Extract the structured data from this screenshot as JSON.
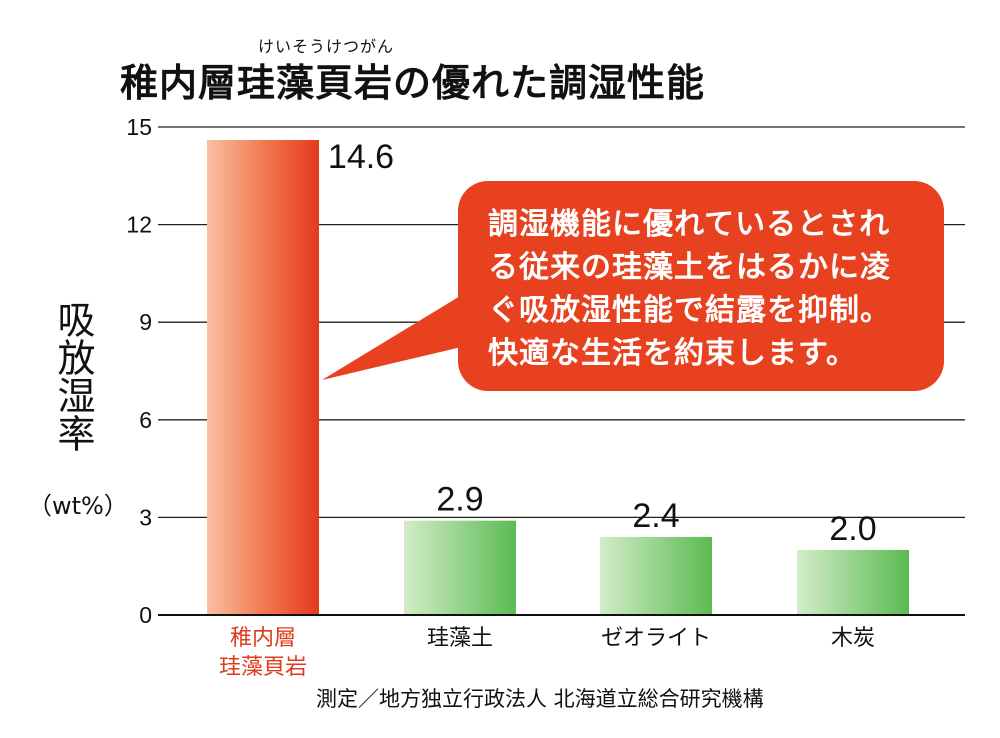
{
  "ruby": "けいそうけつがん",
  "title": "稚内層珪藻頁岩の優れた調湿性能",
  "callout_text": "調湿機能に優れているとされ\nる従来の珪藻土をはるかに凌\nぐ吸放湿性能で結露を抑制。\n快適な生活を約束します。",
  "source": "測定／地方独立行政法人 北海道立総合研究機構",
  "colors": {
    "highlight": "#e8411f",
    "highlight_label": "#e03a1e",
    "other_bars": "#66c05f"
  },
  "chart_data": {
    "type": "bar",
    "title": "稚内層珪藻頁岩の優れた調湿性能",
    "ylabel": "吸放湿率",
    "yunit": "（wt%）",
    "xlabel": "",
    "ylim": [
      0,
      15
    ],
    "yticks": [
      "0",
      "3",
      "6",
      "9",
      "12",
      "15"
    ],
    "grid": true,
    "categories": [
      "稚内層\n珪藻頁岩",
      "珪藻土",
      "ゼオライト",
      "木炭"
    ],
    "values": [
      14.6,
      2.9,
      2.4,
      2.0
    ],
    "value_labels": [
      "14.6",
      "2.9",
      "2.4",
      "2.0"
    ],
    "highlight_index": 0
  }
}
